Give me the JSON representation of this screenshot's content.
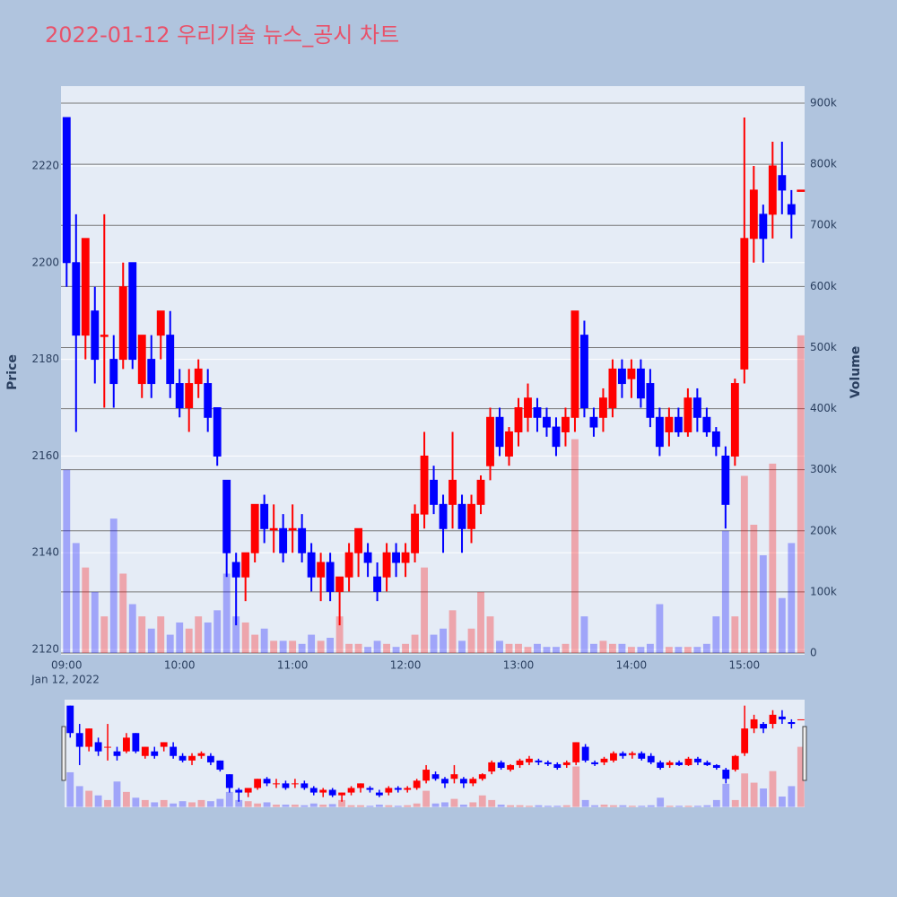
{
  "chart_data": {
    "type": "candlestick",
    "title": "2022-01-12 우리기술 뉴스_공시 차트",
    "y_label": "Price",
    "y2_label": "Volume",
    "x_date_label": "Jan 12, 2022",
    "increasing_color": "#ff0000",
    "decreasing_color": "#0000ff",
    "x": [
      "09:00",
      "09:05",
      "09:10",
      "09:15",
      "09:20",
      "09:25",
      "09:30",
      "09:35",
      "09:40",
      "09:45",
      "09:50",
      "09:55",
      "10:00",
      "10:05",
      "10:10",
      "10:15",
      "10:20",
      "10:25",
      "10:30",
      "10:35",
      "10:40",
      "10:45",
      "10:50",
      "10:55",
      "11:00",
      "11:05",
      "11:10",
      "11:15",
      "11:20",
      "11:25",
      "11:30",
      "11:35",
      "11:40",
      "11:45",
      "11:50",
      "11:55",
      "12:00",
      "12:05",
      "12:10",
      "12:15",
      "12:20",
      "12:25",
      "12:30",
      "12:35",
      "12:40",
      "12:45",
      "12:50",
      "12:55",
      "13:00",
      "13:05",
      "13:10",
      "13:15",
      "13:20",
      "13:25",
      "13:30",
      "13:35",
      "13:40",
      "13:45",
      "13:50",
      "13:55",
      "14:00",
      "14:05",
      "14:10",
      "14:15",
      "14:20",
      "14:25",
      "14:30",
      "14:35",
      "14:40",
      "14:45",
      "14:50",
      "14:55",
      "15:00",
      "15:05",
      "15:10",
      "15:15",
      "15:20",
      "15:25",
      "15:30"
    ],
    "open": [
      2230,
      2200,
      2185,
      2190,
      2185,
      2180,
      2180,
      2200,
      2175,
      2180,
      2185,
      2185,
      2175,
      2170,
      2175,
      2175,
      2170,
      2155,
      2138,
      2135,
      2140,
      2150,
      2145,
      2145,
      2145,
      2145,
      2140,
      2135,
      2138,
      2132,
      2135,
      2140,
      2140,
      2135,
      2135,
      2140,
      2138,
      2140,
      2148,
      2155,
      2150,
      2150,
      2150,
      2145,
      2150,
      2158,
      2168,
      2160,
      2165,
      2168,
      2170,
      2168,
      2166,
      2165,
      2168,
      2185,
      2168,
      2168,
      2170,
      2178,
      2176,
      2178,
      2175,
      2168,
      2165,
      2168,
      2165,
      2172,
      2168,
      2165,
      2160,
      2160,
      2178,
      2205,
      2210,
      2210,
      2218,
      2212,
      2215
    ],
    "high": [
      2230,
      2210,
      2205,
      2195,
      2210,
      2185,
      2200,
      2200,
      2185,
      2185,
      2190,
      2190,
      2178,
      2178,
      2180,
      2178,
      2170,
      2155,
      2140,
      2140,
      2150,
      2152,
      2150,
      2148,
      2150,
      2148,
      2142,
      2140,
      2140,
      2135,
      2142,
      2145,
      2142,
      2138,
      2142,
      2142,
      2142,
      2150,
      2165,
      2158,
      2152,
      2165,
      2152,
      2152,
      2156,
      2170,
      2170,
      2166,
      2172,
      2175,
      2172,
      2170,
      2168,
      2170,
      2190,
      2188,
      2170,
      2174,
      2180,
      2180,
      2180,
      2180,
      2178,
      2170,
      2170,
      2170,
      2174,
      2174,
      2170,
      2166,
      2162,
      2176,
      2230,
      2220,
      2212,
      2225,
      2225,
      2215,
      2215
    ],
    "low": [
      2195,
      2165,
      2180,
      2175,
      2170,
      2170,
      2178,
      2178,
      2172,
      2172,
      2180,
      2172,
      2168,
      2165,
      2172,
      2165,
      2158,
      2135,
      2125,
      2130,
      2138,
      2142,
      2140,
      2138,
      2140,
      2138,
      2132,
      2130,
      2130,
      2125,
      2132,
      2135,
      2135,
      2130,
      2132,
      2135,
      2135,
      2138,
      2145,
      2148,
      2140,
      2145,
      2140,
      2142,
      2148,
      2155,
      2160,
      2158,
      2162,
      2165,
      2165,
      2164,
      2160,
      2162,
      2165,
      2168,
      2164,
      2165,
      2168,
      2172,
      2172,
      2170,
      2166,
      2160,
      2162,
      2164,
      2164,
      2165,
      2164,
      2160,
      2145,
      2158,
      2175,
      2200,
      2200,
      2205,
      2210,
      2205,
      2215
    ],
    "close": [
      2200,
      2185,
      2205,
      2180,
      2185,
      2175,
      2195,
      2180,
      2185,
      2175,
      2190,
      2175,
      2170,
      2175,
      2178,
      2168,
      2160,
      2140,
      2135,
      2140,
      2150,
      2145,
      2145,
      2140,
      2145,
      2140,
      2135,
      2138,
      2132,
      2135,
      2140,
      2145,
      2138,
      2132,
      2140,
      2138,
      2140,
      2148,
      2160,
      2150,
      2145,
      2155,
      2145,
      2150,
      2155,
      2168,
      2162,
      2165,
      2170,
      2172,
      2168,
      2166,
      2162,
      2168,
      2190,
      2170,
      2166,
      2172,
      2178,
      2175,
      2178,
      2172,
      2168,
      2162,
      2168,
      2165,
      2172,
      2168,
      2165,
      2162,
      2150,
      2175,
      2205,
      2215,
      2205,
      2220,
      2215,
      2210,
      2215
    ],
    "volume": [
      300000,
      180000,
      140000,
      100000,
      60000,
      220000,
      130000,
      80000,
      60000,
      40000,
      60000,
      30000,
      50000,
      40000,
      60000,
      50000,
      70000,
      130000,
      60000,
      50000,
      30000,
      40000,
      20000,
      20000,
      20000,
      15000,
      30000,
      20000,
      25000,
      60000,
      15000,
      15000,
      10000,
      20000,
      15000,
      10000,
      15000,
      30000,
      140000,
      30000,
      40000,
      70000,
      20000,
      40000,
      100000,
      60000,
      20000,
      15000,
      15000,
      10000,
      15000,
      10000,
      10000,
      15000,
      350000,
      60000,
      15000,
      20000,
      15000,
      15000,
      10000,
      10000,
      15000,
      80000,
      10000,
      10000,
      10000,
      10000,
      15000,
      60000,
      200000,
      60000,
      290000,
      210000,
      160000,
      310000,
      90000,
      180000,
      520000
    ],
    "xlim": [
      "08:57",
      "15:32"
    ],
    "xticks": [
      "09:00",
      "10:00",
      "11:00",
      "12:00",
      "13:00",
      "14:00",
      "15:00"
    ],
    "ylim": [
      2118.9,
      2236.5
    ],
    "yticks": [
      2120,
      2140,
      2160,
      2180,
      2200,
      2220
    ],
    "y2lim": [
      -2900,
      927900
    ],
    "y2ticks": [
      0,
      {
        "value": 100000,
        "label": "100k"
      },
      {
        "value": 200000,
        "label": "200k"
      },
      {
        "value": 300000,
        "label": "300k"
      },
      {
        "value": 400000,
        "label": "400k"
      },
      {
        "value": 500000,
        "label": "500k"
      },
      {
        "value": 600000,
        "label": "600k"
      },
      {
        "value": 700000,
        "label": "700k"
      },
      {
        "value": 800000,
        "label": "800k"
      },
      {
        "value": 900000,
        "label": "900k"
      }
    ],
    "grid": true
  }
}
